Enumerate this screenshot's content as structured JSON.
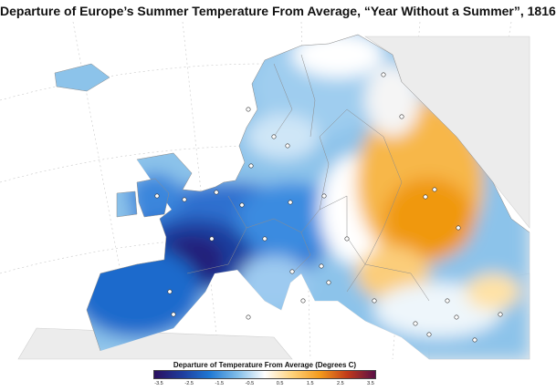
{
  "title": "Departure of Europe’s Summer Temperature From Average, “Year Without a Summer”, 1816",
  "legend": {
    "title": "Departure of Temperature From Average (Degrees C)",
    "ticks": [
      "-3.5",
      "-2.5",
      "-1.5",
      "-0.5",
      "0.5",
      "1.5",
      "2.5",
      "3.5"
    ],
    "range": [
      -3.5,
      3.5
    ],
    "colors": [
      "#2a0f5e",
      "#1f3c9c",
      "#1f78d4",
      "#7fbce8",
      "#ffffff",
      "#ffd27a",
      "#f39a1c",
      "#c0391a",
      "#5a0f46"
    ]
  },
  "map": {
    "land_color": "#ededed",
    "ocean_color": "#ffffff",
    "border_color": "#8a8a8a",
    "station_markers": 32
  }
}
